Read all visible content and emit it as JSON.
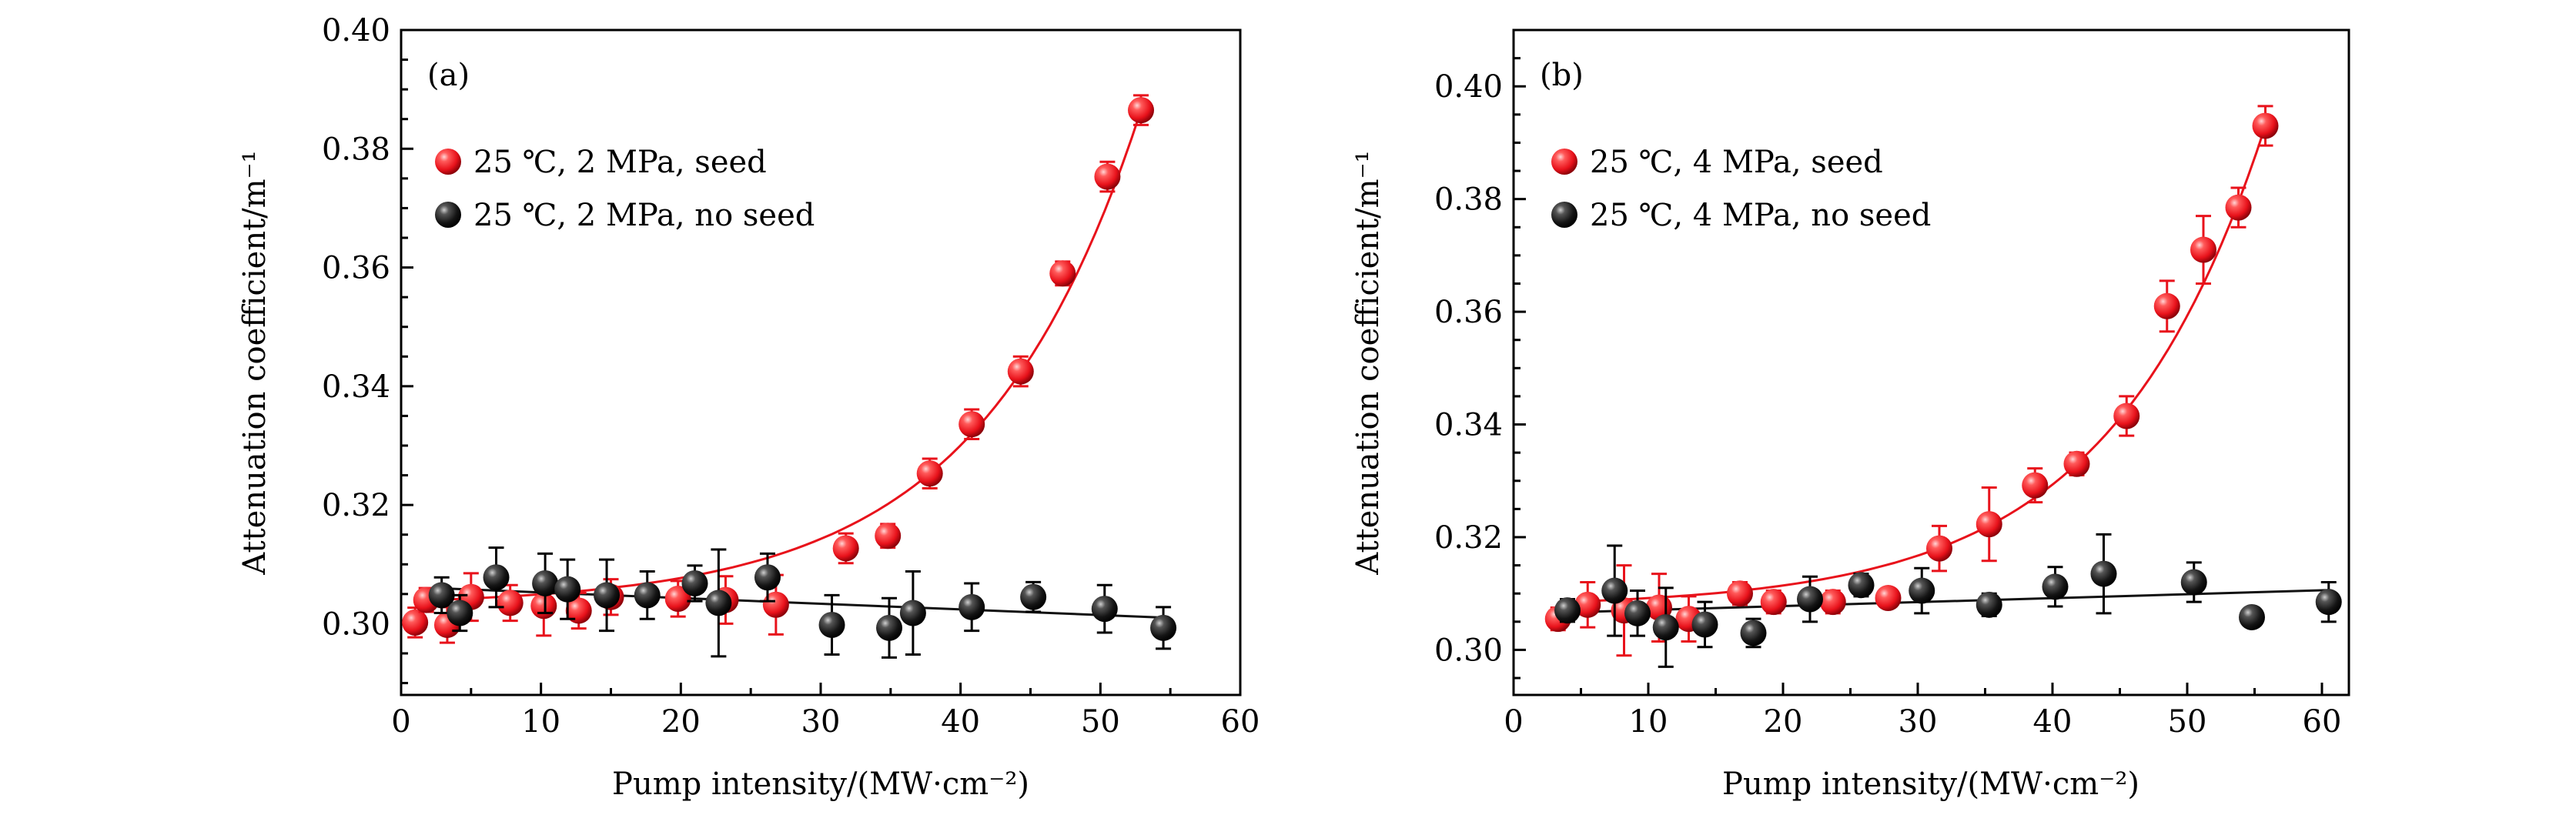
{
  "chart_data": [
    {
      "type": "scatter",
      "panel_label": "(a)",
      "xlabel": "Pump intensity/(MW·cm⁻²)",
      "ylabel": "Attenuation coefficient/m⁻¹",
      "xlim": [
        0,
        60
      ],
      "ylim": [
        0.288,
        0.4
      ],
      "xticks": [
        "0",
        "10",
        "20",
        "30",
        "40",
        "50",
        "60"
      ],
      "yticks": [
        "0.30",
        "0.32",
        "0.34",
        "0.36",
        "0.38",
        "0.40"
      ],
      "legend_position": "top-left",
      "series": [
        {
          "name": "25 ℃, 2 MPa, seed",
          "color": "#e8121b",
          "fit": "exponential",
          "points": [
            {
              "x": 1.0,
              "y": 0.3002,
              "err": 0.0025
            },
            {
              "x": 1.8,
              "y": 0.304,
              "err": 0.002
            },
            {
              "x": 3.3,
              "y": 0.2998,
              "err": 0.003
            },
            {
              "x": 5.0,
              "y": 0.3045,
              "err": 0.004
            },
            {
              "x": 7.8,
              "y": 0.3035,
              "err": 0.003
            },
            {
              "x": 10.2,
              "y": 0.303,
              "err": 0.005
            },
            {
              "x": 12.7,
              "y": 0.3022,
              "err": 0.003
            },
            {
              "x": 15.0,
              "y": 0.3045,
              "err": 0.003
            },
            {
              "x": 19.8,
              "y": 0.3042,
              "err": 0.003
            },
            {
              "x": 23.2,
              "y": 0.304,
              "err": 0.004
            },
            {
              "x": 26.8,
              "y": 0.3032,
              "err": 0.005
            },
            {
              "x": 31.8,
              "y": 0.3127,
              "err": 0.0025
            },
            {
              "x": 34.8,
              "y": 0.3148,
              "err": 0.002
            },
            {
              "x": 37.8,
              "y": 0.3253,
              "err": 0.0025
            },
            {
              "x": 40.8,
              "y": 0.3336,
              "err": 0.0025
            },
            {
              "x": 44.3,
              "y": 0.3425,
              "err": 0.0025
            },
            {
              "x": 47.3,
              "y": 0.359,
              "err": 0.002
            },
            {
              "x": 50.5,
              "y": 0.3753,
              "err": 0.0025
            },
            {
              "x": 52.9,
              "y": 0.3865,
              "err": 0.0025
            }
          ]
        },
        {
          "name": "25 ℃, 2 MPa, no seed",
          "color": "#111111",
          "fit": "linear",
          "points": [
            {
              "x": 2.9,
              "y": 0.3048,
              "err": 0.003
            },
            {
              "x": 4.2,
              "y": 0.3018,
              "err": 0.003
            },
            {
              "x": 6.8,
              "y": 0.3078,
              "err": 0.005
            },
            {
              "x": 10.3,
              "y": 0.3068,
              "err": 0.005
            },
            {
              "x": 11.9,
              "y": 0.3058,
              "err": 0.005
            },
            {
              "x": 14.7,
              "y": 0.3048,
              "err": 0.006
            },
            {
              "x": 17.6,
              "y": 0.3048,
              "err": 0.004
            },
            {
              "x": 21.0,
              "y": 0.3068,
              "err": 0.003
            },
            {
              "x": 22.7,
              "y": 0.3035,
              "err": 0.009
            },
            {
              "x": 26.2,
              "y": 0.3078,
              "err": 0.004
            },
            {
              "x": 30.8,
              "y": 0.2998,
              "err": 0.005
            },
            {
              "x": 34.9,
              "y": 0.2993,
              "err": 0.005
            },
            {
              "x": 36.6,
              "y": 0.3018,
              "err": 0.007
            },
            {
              "x": 40.8,
              "y": 0.3028,
              "err": 0.004
            },
            {
              "x": 45.2,
              "y": 0.3045,
              "err": 0.0025
            },
            {
              "x": 50.3,
              "y": 0.3025,
              "err": 0.004
            },
            {
              "x": 54.5,
              "y": 0.2993,
              "err": 0.0035
            }
          ]
        }
      ]
    },
    {
      "type": "scatter",
      "panel_label": "(b)",
      "xlabel": "Pump intensity/(MW·cm⁻²)",
      "ylabel": "Attenuation coefficient/m⁻¹",
      "xlim": [
        0,
        62
      ],
      "ylim": [
        0.292,
        0.41
      ],
      "xticks": [
        "0",
        "10",
        "20",
        "30",
        "40",
        "50",
        "60"
      ],
      "yticks": [
        "0.30",
        "0.32",
        "0.34",
        "0.36",
        "0.38",
        "0.40"
      ],
      "legend_position": "top-left",
      "series": [
        {
          "name": "25 ℃, 4 MPa, seed",
          "color": "#e8121b",
          "fit": "exponential",
          "points": [
            {
              "x": 3.3,
              "y": 0.3055,
              "err": 0.002
            },
            {
              "x": 5.5,
              "y": 0.308,
              "err": 0.004
            },
            {
              "x": 8.2,
              "y": 0.307,
              "err": 0.008
            },
            {
              "x": 10.8,
              "y": 0.3075,
              "err": 0.006
            },
            {
              "x": 13.0,
              "y": 0.3055,
              "err": 0.004
            },
            {
              "x": 16.8,
              "y": 0.31,
              "err": 0.002
            },
            {
              "x": 19.3,
              "y": 0.3085,
              "err": 0.002
            },
            {
              "x": 23.7,
              "y": 0.3085,
              "err": 0.002
            },
            {
              "x": 27.8,
              "y": 0.3092,
              "err": 0.0015
            },
            {
              "x": 31.6,
              "y": 0.318,
              "err": 0.004
            },
            {
              "x": 35.3,
              "y": 0.3223,
              "err": 0.0065
            },
            {
              "x": 38.7,
              "y": 0.3292,
              "err": 0.003
            },
            {
              "x": 41.8,
              "y": 0.333,
              "err": 0.002
            },
            {
              "x": 45.5,
              "y": 0.3415,
              "err": 0.0035
            },
            {
              "x": 48.5,
              "y": 0.361,
              "err": 0.0045
            },
            {
              "x": 51.2,
              "y": 0.371,
              "err": 0.006
            },
            {
              "x": 53.8,
              "y": 0.3785,
              "err": 0.0035
            },
            {
              "x": 55.8,
              "y": 0.393,
              "err": 0.0035
            }
          ]
        },
        {
          "name": "25 ℃, 4 MPa, no seed",
          "color": "#111111",
          "fit": "linear",
          "points": [
            {
              "x": 4.0,
              "y": 0.307,
              "err": 0.002
            },
            {
              "x": 7.5,
              "y": 0.3105,
              "err": 0.008
            },
            {
              "x": 9.2,
              "y": 0.3065,
              "err": 0.004
            },
            {
              "x": 11.3,
              "y": 0.304,
              "err": 0.007
            },
            {
              "x": 14.2,
              "y": 0.3045,
              "err": 0.004
            },
            {
              "x": 17.8,
              "y": 0.303,
              "err": 0.0025
            },
            {
              "x": 22.0,
              "y": 0.309,
              "err": 0.004
            },
            {
              "x": 25.8,
              "y": 0.3115,
              "err": 0.002
            },
            {
              "x": 30.3,
              "y": 0.3105,
              "err": 0.004
            },
            {
              "x": 35.3,
              "y": 0.308,
              "err": 0.002
            },
            {
              "x": 40.2,
              "y": 0.3112,
              "err": 0.0035
            },
            {
              "x": 43.8,
              "y": 0.3135,
              "err": 0.007
            },
            {
              "x": 50.5,
              "y": 0.312,
              "err": 0.0035
            },
            {
              "x": 54.8,
              "y": 0.3058,
              "err": 0.001
            },
            {
              "x": 60.5,
              "y": 0.3085,
              "err": 0.0035
            }
          ]
        }
      ]
    }
  ]
}
